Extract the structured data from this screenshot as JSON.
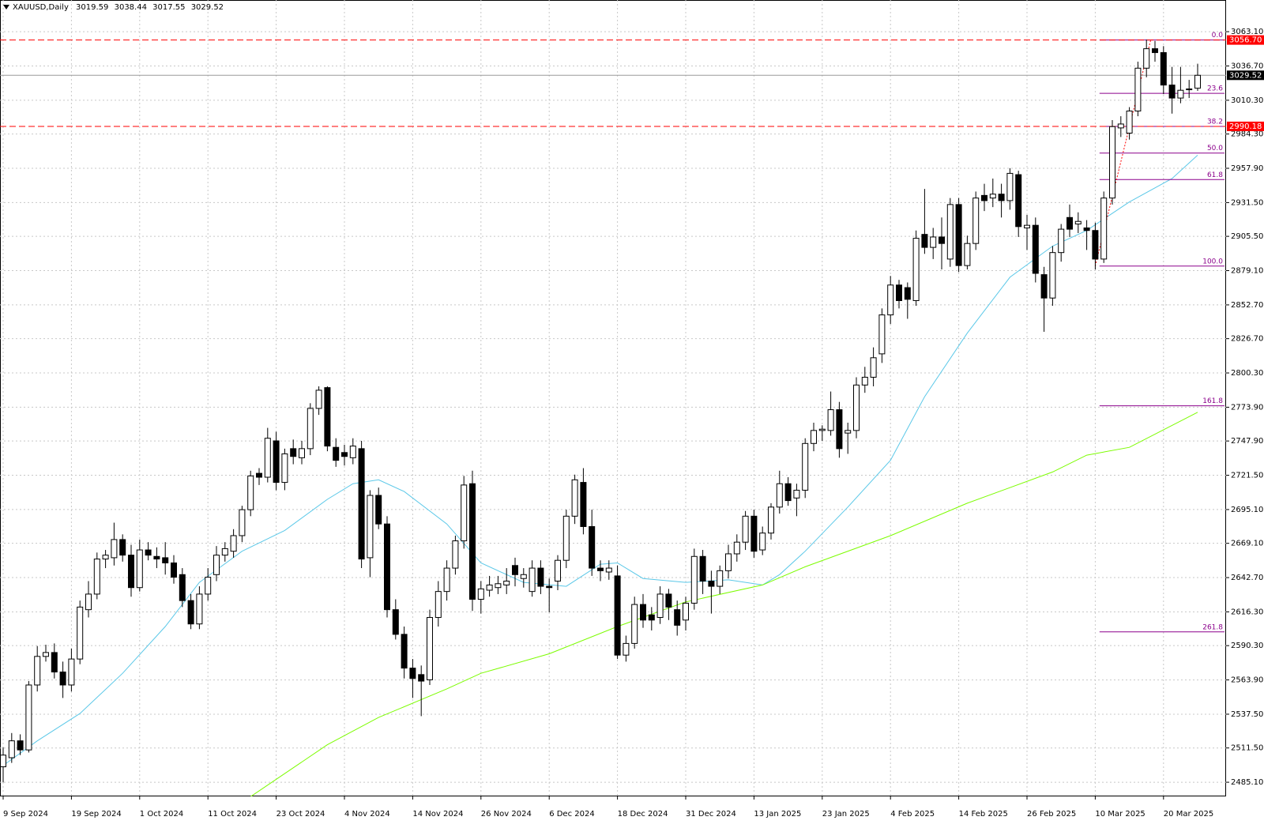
{
  "chart_data": {
    "type": "candlestick",
    "symbol": "XAUUSD,Daily",
    "ylim": [
      2474.2,
      3087.5
    ],
    "yticks": [
      {
        "value": 3063.1,
        "label": "3063.10"
      },
      {
        "value": 3036.7,
        "label": "3036.70"
      },
      {
        "value": 3010.3,
        "label": "3010.30"
      },
      {
        "value": 2984.3,
        "label": "2984.30"
      },
      {
        "value": 2957.9,
        "label": "2957.90"
      },
      {
        "value": 2931.5,
        "label": "2931.50"
      },
      {
        "value": 2905.5,
        "label": "2905.50"
      },
      {
        "value": 2879.1,
        "label": "2879.10"
      },
      {
        "value": 2852.7,
        "label": "2852.70"
      },
      {
        "value": 2826.7,
        "label": "2826.70"
      },
      {
        "value": 2800.3,
        "label": "2800.30"
      },
      {
        "value": 2773.9,
        "label": "2773.90"
      },
      {
        "value": 2747.9,
        "label": "2747.90"
      },
      {
        "value": 2721.5,
        "label": "2721.50"
      },
      {
        "value": 2695.1,
        "label": "2695.10"
      },
      {
        "value": 2669.1,
        "label": "2669.10"
      },
      {
        "value": 2642.7,
        "label": "2642.70"
      },
      {
        "value": 2616.3,
        "label": "2616.30"
      },
      {
        "value": 2590.3,
        "label": "2590.30"
      },
      {
        "value": 2563.9,
        "label": "2563.90"
      },
      {
        "value": 2537.5,
        "label": "2537.50"
      },
      {
        "value": 2511.5,
        "label": "2511.50"
      },
      {
        "value": 2485.1,
        "label": "2485.10"
      }
    ],
    "xticks": [
      {
        "value": 0,
        "label": "9 Sep 2024"
      },
      {
        "value": 8,
        "label": "19 Sep 2024"
      },
      {
        "value": 16,
        "label": "1 Oct 2024"
      },
      {
        "value": 24,
        "label": "11 Oct 2024"
      },
      {
        "value": 32,
        "label": "23 Oct 2024"
      },
      {
        "value": 40,
        "label": "4 Nov 2024"
      },
      {
        "value": 48,
        "label": "14 Nov 2024"
      },
      {
        "value": 56,
        "label": "26 Nov 2024"
      },
      {
        "value": 64,
        "label": "6 Dec 2024"
      },
      {
        "value": 72,
        "label": "18 Dec 2024"
      },
      {
        "value": 80,
        "label": "31 Dec 2024"
      },
      {
        "value": 88,
        "label": "13 Jan 2025"
      },
      {
        "value": 96,
        "label": "23 Jan 2025"
      },
      {
        "value": 104,
        "label": "4 Feb 2025"
      },
      {
        "value": 112,
        "label": "14 Feb 2025"
      },
      {
        "value": 120,
        "label": "26 Feb 2025"
      },
      {
        "value": 128,
        "label": "10 Mar 2025"
      },
      {
        "value": 136,
        "label": "20 Mar 2025"
      }
    ],
    "grid": true,
    "up_color": "#ffffff",
    "down_color": "#000000",
    "open": [
      2497,
      2504,
      2517,
      2510,
      2560,
      2582,
      2585,
      2570,
      2560,
      2580,
      2618,
      2630,
      2657,
      2658,
      2672,
      2660,
      2635,
      2664,
      2659,
      2658,
      2654,
      2645,
      2625,
      2607,
      2630,
      2645,
      2660,
      2663,
      2675,
      2695,
      2723,
      2720,
      2748,
      2716,
      2742,
      2735,
      2742,
      2773,
      2789,
      2743,
      2739,
      2735,
      2742,
      2658,
      2706,
      2684,
      2618,
      2599,
      2573,
      2568,
      2564,
      2612,
      2632,
      2650,
      2671,
      2715,
      2626,
      2633,
      2635,
      2637,
      2652,
      2642,
      2632,
      2650,
      2636,
      2640,
      2656,
      2690,
      2716,
      2682,
      2650,
      2647,
      2644,
      2583,
      2592,
      2622,
      2614,
      2612,
      2630,
      2618,
      2610,
      2623,
      2659,
      2640,
      2636,
      2648,
      2661,
      2670,
      2690,
      2664,
      2677,
      2697,
      2715,
      2704,
      2710,
      2746,
      2756,
      2756,
      2772,
      2754,
      2756,
      2791,
      2797,
      2815,
      2845,
      2868,
      2866,
      2856,
      2907,
      2897,
      2905,
      2888,
      2930,
      2883,
      2900,
      2937,
      2935,
      2938,
      2933,
      2953,
      2912,
      2914,
      2876,
      2858,
      2893,
      2920,
      2915,
      2912,
      2910,
      2888,
      2935,
      2989,
      2985,
      3002,
      3035,
      3050,
      3047,
      3022,
      3012,
      3019,
      3019.59
    ],
    "high": [
      2512,
      2523,
      2522,
      2563,
      2590,
      2591,
      2592,
      2578,
      2588,
      2625,
      2640,
      2662,
      2664,
      2685,
      2676,
      2668,
      2672,
      2670,
      2666,
      2670,
      2660,
      2650,
      2630,
      2636,
      2650,
      2667,
      2670,
      2680,
      2698,
      2725,
      2727,
      2758,
      2755,
      2742,
      2749,
      2748,
      2777,
      2790,
      2790,
      2750,
      2745,
      2750,
      2748,
      2710,
      2712,
      2690,
      2626,
      2605,
      2580,
      2575,
      2618,
      2640,
      2656,
      2675,
      2721,
      2725,
      2640,
      2644,
      2644,
      2650,
      2658,
      2650,
      2656,
      2656,
      2642,
      2660,
      2695,
      2722,
      2727,
      2695,
      2656,
      2656,
      2652,
      2598,
      2628,
      2630,
      2620,
      2636,
      2634,
      2625,
      2628,
      2665,
      2664,
      2648,
      2652,
      2668,
      2676,
      2694,
      2695,
      2682,
      2700,
      2725,
      2720,
      2715,
      2750,
      2762,
      2760,
      2786,
      2778,
      2762,
      2797,
      2805,
      2820,
      2850,
      2875,
      2872,
      2870,
      2910,
      2942,
      2912,
      2920,
      2935,
      2935,
      2906,
      2940,
      2946,
      2950,
      2946,
      2958,
      2956,
      2922,
      2920,
      2882,
      2898,
      2915,
      2930,
      2924,
      2918,
      2916,
      2940,
      2995,
      2998,
      3005,
      3040,
      3057,
      3056,
      3052,
      3036,
      3036,
      3026,
      3038.44
    ],
    "low": [
      2485,
      2500,
      2506,
      2508,
      2555,
      2578,
      2565,
      2550,
      2555,
      2576,
      2612,
      2626,
      2650,
      2652,
      2655,
      2628,
      2632,
      2656,
      2650,
      2645,
      2638,
      2620,
      2603,
      2603,
      2625,
      2640,
      2655,
      2658,
      2670,
      2690,
      2714,
      2716,
      2710,
      2710,
      2730,
      2730,
      2737,
      2768,
      2740,
      2728,
      2729,
      2730,
      2650,
      2643,
      2680,
      2612,
      2595,
      2565,
      2550,
      2536,
      2560,
      2605,
      2625,
      2645,
      2665,
      2617,
      2615,
      2628,
      2630,
      2630,
      2636,
      2635,
      2628,
      2630,
      2616,
      2633,
      2650,
      2684,
      2676,
      2644,
      2640,
      2641,
      2580,
      2578,
      2588,
      2604,
      2602,
      2607,
      2610,
      2598,
      2602,
      2618,
      2630,
      2615,
      2630,
      2642,
      2655,
      2664,
      2658,
      2660,
      2672,
      2692,
      2698,
      2690,
      2704,
      2740,
      2748,
      2752,
      2735,
      2738,
      2750,
      2785,
      2790,
      2808,
      2838,
      2850,
      2842,
      2852,
      2892,
      2888,
      2880,
      2882,
      2878,
      2880,
      2895,
      2925,
      2928,
      2920,
      2926,
      2905,
      2895,
      2870,
      2832,
      2852,
      2886,
      2905,
      2908,
      2895,
      2880,
      2885,
      2930,
      2982,
      2980,
      2998,
      3028,
      3040,
      3015,
      3000,
      3008,
      3012,
      3017.55
    ],
    "close": [
      2506,
      2517,
      2510,
      2560,
      2582,
      2585,
      2570,
      2560,
      2580,
      2620,
      2630,
      2657,
      2660,
      2672,
      2660,
      2635,
      2664,
      2660,
      2657,
      2654,
      2643,
      2625,
      2607,
      2630,
      2643,
      2660,
      2665,
      2675,
      2695,
      2721,
      2720,
      2750,
      2716,
      2738,
      2736,
      2742,
      2773,
      2787,
      2744,
      2733,
      2736,
      2744,
      2657,
      2706,
      2684,
      2618,
      2599,
      2573,
      2565,
      2563,
      2612,
      2632,
      2650,
      2671,
      2714,
      2626,
      2634,
      2637,
      2638,
      2640,
      2645,
      2645,
      2650,
      2636,
      2635,
      2656,
      2690,
      2718,
      2682,
      2650,
      2648,
      2650,
      2583,
      2592,
      2622,
      2610,
      2610,
      2630,
      2620,
      2606,
      2623,
      2659,
      2640,
      2636,
      2648,
      2661,
      2670,
      2690,
      2663,
      2677,
      2697,
      2715,
      2702,
      2710,
      2746,
      2756,
      2757,
      2772,
      2742,
      2756,
      2791,
      2797,
      2812,
      2845,
      2868,
      2856,
      2857,
      2904,
      2897,
      2905,
      2900,
      2930,
      2883,
      2900,
      2935,
      2933,
      2938,
      2933,
      2954,
      2913,
      2914,
      2877,
      2858,
      2893,
      2911,
      2911,
      2917,
      2910,
      2888,
      2935,
      2990,
      2992,
      3002,
      3035,
      3050,
      3047,
      3022,
      3012,
      3018,
      3019,
      3029.52
    ],
    "last_price_color": "#000000",
    "moving_averages": [
      {
        "color": "#5bc8e8",
        "x": [
          0,
          4,
          9,
          14,
          19,
          23,
          28,
          33,
          38,
          41,
          44,
          47,
          52,
          56,
          61,
          66,
          70,
          72,
          75,
          80,
          85,
          89,
          91,
          94,
          99,
          104,
          108,
          113,
          118,
          123,
          127,
          132,
          137,
          140
        ],
        "values": [
          2498,
          2517,
          2538,
          2569,
          2605,
          2639,
          2663,
          2679,
          2703,
          2715,
          2718,
          2709,
          2684,
          2654,
          2639,
          2636,
          2653,
          2654,
          2642,
          2639,
          2641,
          2637,
          2645,
          2663,
          2697,
          2733,
          2782,
          2831,
          2874,
          2898,
          2910,
          2932,
          2950,
          2968
        ]
      },
      {
        "color": "#7cfc00",
        "x": [
          29,
          38,
          44,
          52,
          56,
          64,
          72,
          80,
          89,
          94,
          104,
          113,
          123,
          127,
          132,
          140
        ],
        "values": [
          2474,
          2514,
          2535,
          2557,
          2569,
          2584,
          2605,
          2624,
          2637,
          2651,
          2675,
          2700,
          2724,
          2737,
          2743,
          2770
        ]
      }
    ],
    "price_lines": [
      {
        "value": 3056.7,
        "label": "3056.70",
        "color": "#ff0000"
      },
      {
        "value": 2990.18,
        "label": "2990.18",
        "color": "#ff0000"
      }
    ],
    "fib_color": "#8b008b",
    "fib_levels": [
      {
        "label": "0.0",
        "value": 3056.7
      },
      {
        "label": "23.6",
        "value": 3015.6
      },
      {
        "label": "38.2",
        "value": 2990.18
      },
      {
        "label": "50.0",
        "value": 2969.65
      },
      {
        "label": "61.8",
        "value": 2949.2
      },
      {
        "label": "100.0",
        "value": 2882.6
      },
      {
        "label": "161.8",
        "value": 2775.0
      },
      {
        "label": "261.8",
        "value": 2600.9
      }
    ]
  }
}
